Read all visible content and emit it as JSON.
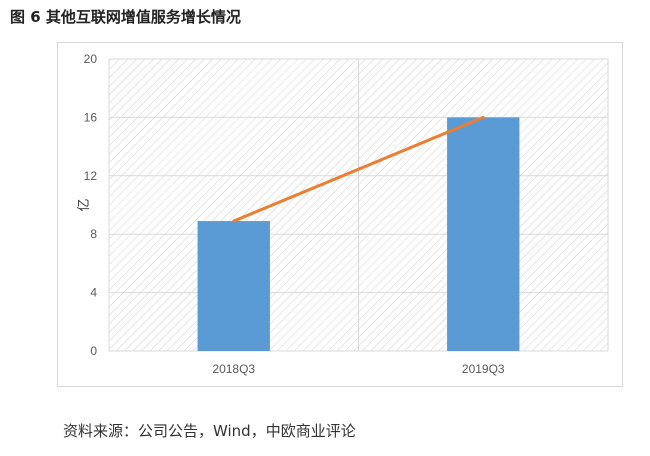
{
  "title": "图 6 其他互联网增值服务增长情况",
  "source": "资料来源：公司公告，Wind，中欧商业评论",
  "colors": {
    "bar": "#5b9bd5",
    "line": "#ed7d31",
    "grid": "#d9d9d9",
    "hatch": "#d0d0d0"
  },
  "chart_data": {
    "type": "bar",
    "categories": [
      "2018Q3",
      "2019Q3"
    ],
    "values": [
      8.9,
      16
    ],
    "overlay_line": [
      8.9,
      16
    ],
    "ylabel": "亿",
    "ylim": [
      0,
      20
    ],
    "yticks": [
      "0",
      "4",
      "8",
      "12",
      "16",
      "20"
    ],
    "grid": true,
    "legend": "none"
  }
}
